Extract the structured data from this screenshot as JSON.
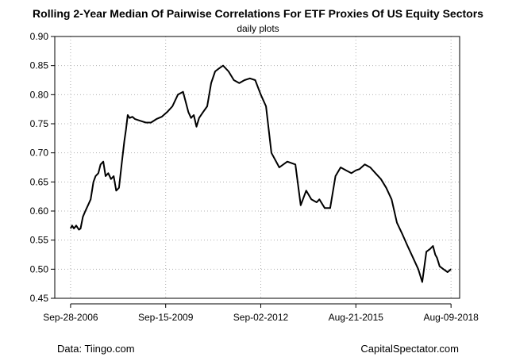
{
  "chart_data": {
    "type": "line",
    "title": "Rolling 2-Year Median Of Pairwise Correlations For ETF Proxies Of US Equity Sectors",
    "subtitle": "daily plots",
    "xlabel": "",
    "ylabel": "",
    "x_ticks": [
      "Sep-28-2006",
      "Sep-15-2009",
      "Sep-02-2012",
      "Aug-21-2015",
      "Aug-09-2018"
    ],
    "y_ticks": [
      "0.45",
      "0.50",
      "0.55",
      "0.60",
      "0.65",
      "0.70",
      "0.75",
      "0.80",
      "0.85",
      "0.90"
    ],
    "xlim": [
      "2006-04-01",
      "2018-11-15"
    ],
    "ylim": [
      0.45,
      0.9
    ],
    "grid": true,
    "series": [
      {
        "color": "#000000",
        "x": [
          "2006-09-28",
          "2006-10-15",
          "2006-11-05",
          "2006-12-01",
          "2007-01-01",
          "2007-01-20",
          "2007-02-15",
          "2007-03-15",
          "2007-04-15",
          "2007-05-15",
          "2007-06-15",
          "2007-07-10",
          "2007-08-10",
          "2007-09-05",
          "2007-10-05",
          "2007-11-01",
          "2007-12-01",
          "2008-01-01",
          "2008-02-01",
          "2008-03-01",
          "2008-04-01",
          "2008-05-01",
          "2008-06-01",
          "2008-06-20",
          "2008-07-10",
          "2008-08-01",
          "2008-09-01",
          "2008-10-01",
          "2008-12-01",
          "2009-02-01",
          "2009-04-01",
          "2009-06-01",
          "2009-08-01",
          "2009-10-01",
          "2009-12-01",
          "2010-02-01",
          "2010-04-01",
          "2010-06-01",
          "2010-07-01",
          "2010-08-01",
          "2010-09-01",
          "2010-10-01",
          "2010-11-15",
          "2011-01-01",
          "2011-02-15",
          "2011-04-01",
          "2011-05-15",
          "2011-07-01",
          "2011-09-01",
          "2011-11-01",
          "2012-01-01",
          "2012-03-01",
          "2012-05-01",
          "2012-07-01",
          "2012-09-02",
          "2012-11-01",
          "2013-01-01",
          "2013-04-01",
          "2013-07-01",
          "2013-10-01",
          "2013-12-01",
          "2014-02-01",
          "2014-04-01",
          "2014-06-01",
          "2014-07-01",
          "2014-09-01",
          "2014-11-01",
          "2015-01-01",
          "2015-03-01",
          "2015-05-01",
          "2015-07-01",
          "2015-08-21",
          "2015-10-01",
          "2015-12-01",
          "2016-02-01",
          "2016-04-01",
          "2016-06-01",
          "2016-08-01",
          "2016-10-01",
          "2016-12-01",
          "2017-02-01",
          "2017-04-01",
          "2017-06-01",
          "2017-08-01",
          "2017-09-15",
          "2017-11-01",
          "2017-12-15",
          "2018-01-15",
          "2018-02-10",
          "2018-03-01",
          "2018-04-01",
          "2018-05-15",
          "2018-07-01",
          "2018-08-09"
        ],
        "y": [
          0.57,
          0.575,
          0.57,
          0.575,
          0.568,
          0.57,
          0.59,
          0.6,
          0.61,
          0.62,
          0.65,
          0.66,
          0.665,
          0.68,
          0.685,
          0.66,
          0.665,
          0.655,
          0.66,
          0.635,
          0.64,
          0.68,
          0.72,
          0.74,
          0.765,
          0.76,
          0.762,
          0.758,
          0.755,
          0.752,
          0.752,
          0.758,
          0.762,
          0.77,
          0.78,
          0.8,
          0.805,
          0.77,
          0.76,
          0.765,
          0.745,
          0.76,
          0.77,
          0.78,
          0.82,
          0.84,
          0.845,
          0.85,
          0.84,
          0.825,
          0.82,
          0.825,
          0.828,
          0.825,
          0.8,
          0.78,
          0.7,
          0.675,
          0.685,
          0.68,
          0.61,
          0.635,
          0.62,
          0.615,
          0.62,
          0.605,
          0.605,
          0.66,
          0.675,
          0.67,
          0.665,
          0.67,
          0.672,
          0.68,
          0.675,
          0.665,
          0.655,
          0.64,
          0.62,
          0.58,
          0.56,
          0.54,
          0.52,
          0.5,
          0.478,
          0.53,
          0.535,
          0.54,
          0.525,
          0.52,
          0.505,
          0.5,
          0.495,
          0.5
        ]
      }
    ]
  },
  "footer": {
    "left": "Data: Tiingo.com",
    "right": "CapitalSpectator.com"
  }
}
